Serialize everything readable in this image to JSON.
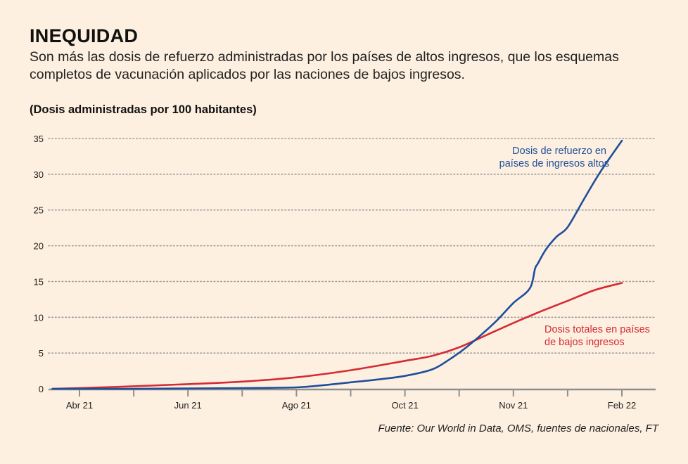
{
  "header": {
    "title": "INEQUIDAD",
    "subtitle": "Son más las dosis de refuerzo administradas por los países de altos ingresos, que los esquemas completos de vacunación aplicados por las naciones de bajos ingresos.",
    "unit_label": "(Dosis administradas por 100 habitantes)"
  },
  "source": "Fuente: Our World in Data, OMS, fuentes de nacionales, FT",
  "colors": {
    "background": "#fdf0e0",
    "high_income": "#1f4e9c",
    "low_income": "#d42b34",
    "grid": "#9a9a9a",
    "axis": "#8f8f8f"
  },
  "chart_data": {
    "type": "line",
    "title": "INEQUIDAD",
    "ylabel": "(Dosis administradas por 100 habitantes)",
    "xlabel": "",
    "ylim": [
      0,
      35
    ],
    "yticks": [
      0,
      5,
      10,
      15,
      20,
      25,
      30,
      35
    ],
    "grid": "horizontal dotted",
    "x_index_range": [
      -0.5,
      10.1
    ],
    "xticks": [
      {
        "pos": 0,
        "label": "Abr 21"
      },
      {
        "pos": 1,
        "label": ""
      },
      {
        "pos": 2,
        "label": "Jun 21"
      },
      {
        "pos": 3,
        "label": ""
      },
      {
        "pos": 4,
        "label": "Ago 21"
      },
      {
        "pos": 5,
        "label": ""
      },
      {
        "pos": 6,
        "label": "Oct 21"
      },
      {
        "pos": 7,
        "label": ""
      },
      {
        "pos": 8,
        "label": "Nov 21"
      },
      {
        "pos": 9,
        "label": ""
      },
      {
        "pos": 10,
        "label": "Feb 22"
      }
    ],
    "series": [
      {
        "name": "Dosis de refuerzo en países de ingresos altos",
        "label_lines": [
          "Dosis de refuerzo en",
          "países de ingresos altos"
        ],
        "color": "#1f4e9c",
        "x": [
          -0.5,
          0,
          1,
          2,
          3,
          4,
          4.5,
          5,
          5.5,
          6,
          6.5,
          6.8,
          7.1,
          7.4,
          7.7,
          8.0,
          8.3,
          8.4,
          8.45,
          8.6,
          8.8,
          9.0,
          9.3,
          9.6,
          10.0
        ],
        "values": [
          0,
          0,
          0,
          0.05,
          0.1,
          0.2,
          0.5,
          0.9,
          1.3,
          1.8,
          2.7,
          4.0,
          5.6,
          7.5,
          9.6,
          12.0,
          14.0,
          16.8,
          17.5,
          19.5,
          21.3,
          22.6,
          26.5,
          30.3,
          34.7
        ]
      },
      {
        "name": "Dosis totales en países de bajos ingresos",
        "label_lines": [
          "Dosis totales en países",
          "de bajos ingresos"
        ],
        "color": "#d42b34",
        "x": [
          -0.5,
          0,
          1,
          2,
          3,
          4,
          5,
          6,
          6.5,
          7,
          7.5,
          8,
          8.5,
          9,
          9.5,
          10.0
        ],
        "values": [
          0,
          0.1,
          0.35,
          0.65,
          1.0,
          1.6,
          2.6,
          3.9,
          4.6,
          5.8,
          7.5,
          9.2,
          10.8,
          12.3,
          13.8,
          14.8
        ]
      }
    ]
  }
}
